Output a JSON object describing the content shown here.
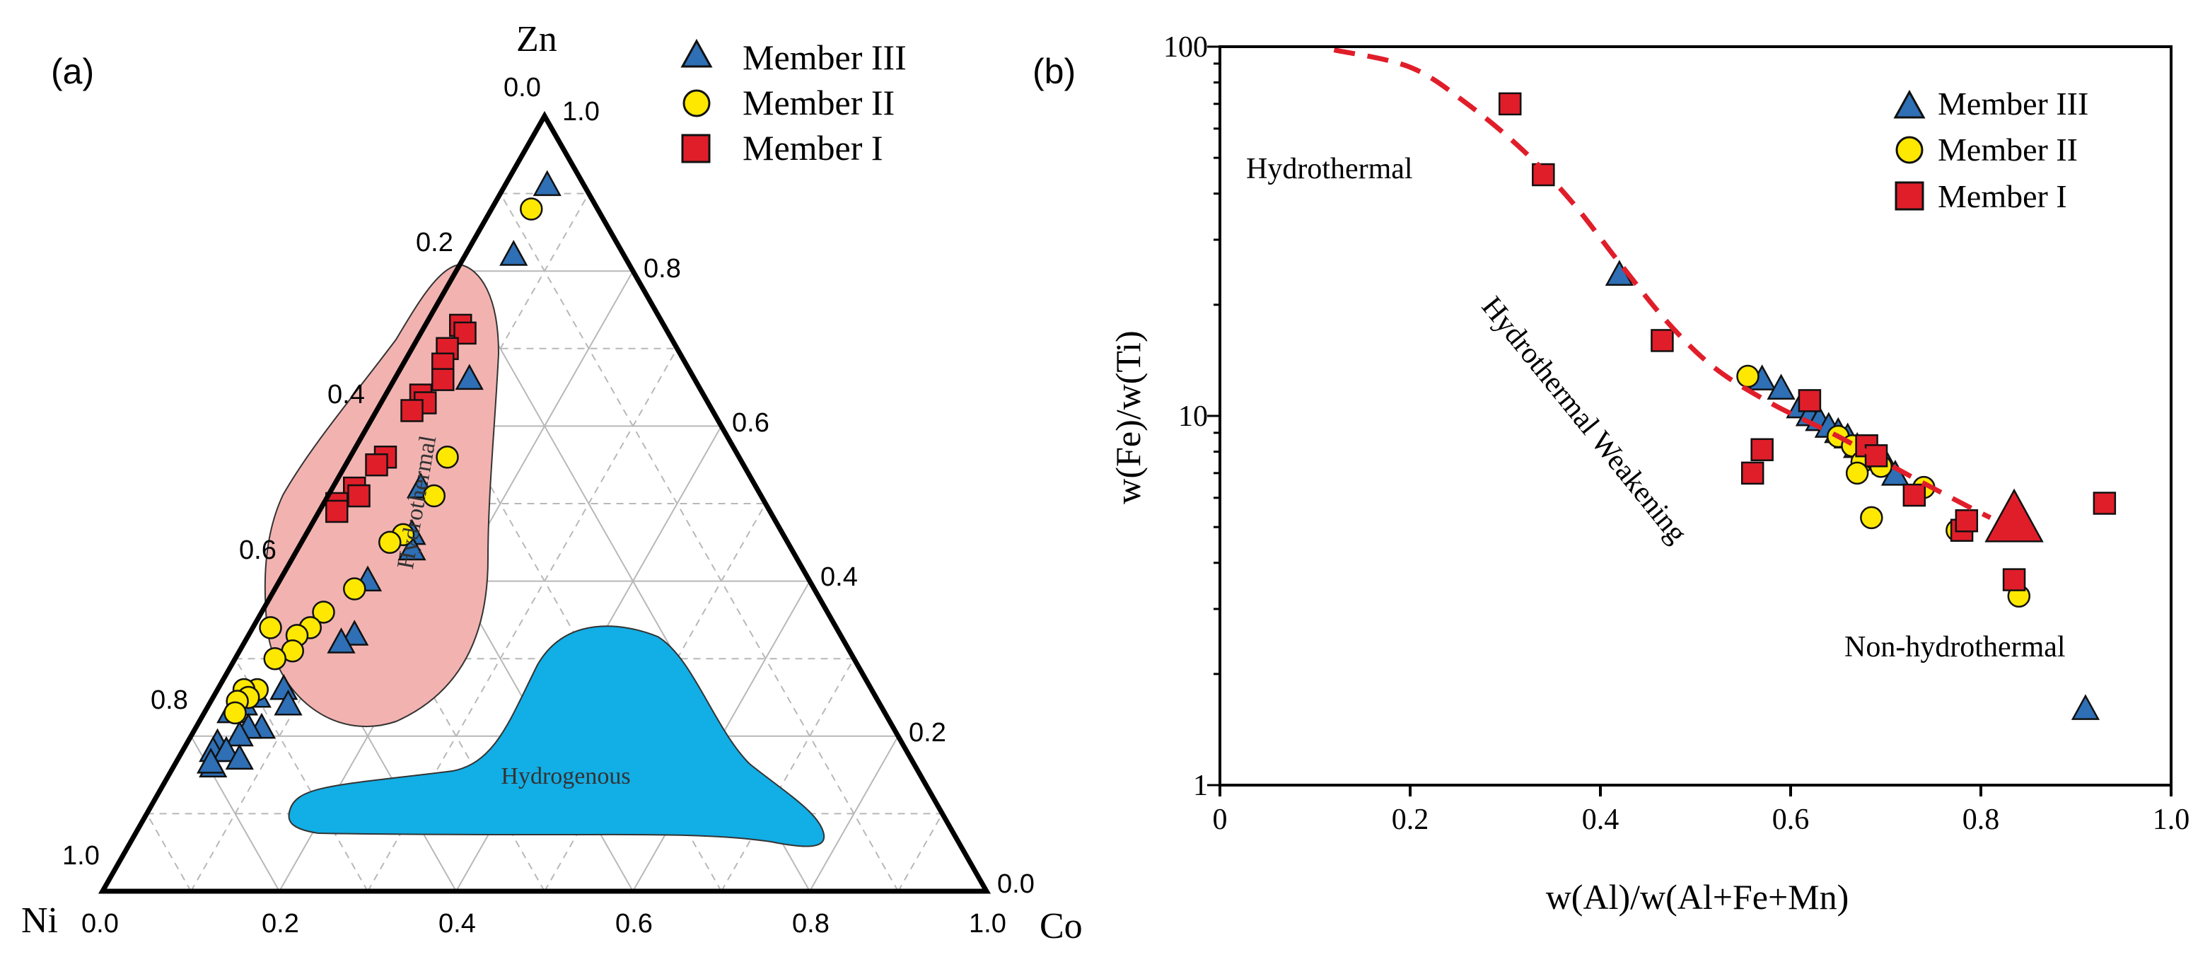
{
  "chart_data": [
    {
      "type": "ternary-scatter",
      "panel_label": "(a)",
      "vertices": {
        "top": "Zn",
        "left": "Ni",
        "right": "Co"
      },
      "top_axis_ticks": [
        "0.0",
        "1.0"
      ],
      "left_edge_ticks": [
        "0.2",
        "0.4",
        "0.6",
        "0.8",
        "1.0"
      ],
      "right_edge_ticks": [
        "0.8",
        "0.6",
        "0.4",
        "0.2",
        "0.0"
      ],
      "bottom_edge_ticks": [
        "0.0",
        "0.2",
        "0.4",
        "0.6",
        "0.8",
        "1.0"
      ],
      "fields": [
        {
          "name": "Hydrothermal",
          "color": "#f2b3b0"
        },
        {
          "name": "Hydrogenous",
          "color": "#12aee6"
        }
      ],
      "legend": [
        "Member III",
        "Member II",
        "Member I"
      ],
      "series": [
        {
          "name": "Member III",
          "marker": "triangle",
          "color": "#2e6fb5",
          "points": [
            {
              "co": 0.048,
              "zn": 0.91
            },
            {
              "co": 0.055,
              "zn": 0.82
            },
            {
              "co": 0.085,
              "zn": 0.66
            },
            {
              "co": 0.1,
              "zn": 0.52
            },
            {
              "co": 0.12,
              "zn": 0.46
            },
            {
              "co": 0.13,
              "zn": 0.44
            },
            {
              "co": 0.1,
              "zn": 0.4
            },
            {
              "co": 0.12,
              "zn": 0.33
            },
            {
              "co": 0.11,
              "zn": 0.32
            },
            {
              "co": 0.075,
              "zn": 0.26
            },
            {
              "co": 0.09,
              "zn": 0.24
            },
            {
              "co": 0.05,
              "zn": 0.25
            },
            {
              "co": 0.04,
              "zn": 0.24
            },
            {
              "co": 0.03,
              "zn": 0.23
            },
            {
              "co": 0.075,
              "zn": 0.21
            },
            {
              "co": 0.06,
              "zn": 0.21
            },
            {
              "co": 0.055,
              "zn": 0.2
            },
            {
              "co": 0.035,
              "zn": 0.19
            },
            {
              "co": 0.035,
              "zn": 0.18
            },
            {
              "co": 0.05,
              "zn": 0.18
            },
            {
              "co": 0.07,
              "zn": 0.17
            },
            {
              "co": 0.045,
              "zn": 0.16
            },
            {
              "co": 0.04,
              "zn": 0.165
            }
          ]
        },
        {
          "name": "Member II",
          "marker": "circle",
          "color": "#ffe800",
          "points": [
            {
              "co": 0.045,
              "zn": 0.88
            },
            {
              "co": 0.11,
              "zn": 0.56
            },
            {
              "co": 0.12,
              "zn": 0.51
            },
            {
              "co": 0.11,
              "zn": 0.46
            },
            {
              "co": 0.1,
              "zn": 0.45
            },
            {
              "co": 0.09,
              "zn": 0.39
            },
            {
              "co": 0.07,
              "zn": 0.36
            },
            {
              "co": 0.065,
              "zn": 0.34
            },
            {
              "co": 0.055,
              "zn": 0.33
            },
            {
              "co": 0.02,
              "zn": 0.34
            },
            {
              "co": 0.06,
              "zn": 0.31
            },
            {
              "co": 0.045,
              "zn": 0.3
            },
            {
              "co": 0.045,
              "zn": 0.26
            },
            {
              "co": 0.03,
              "zn": 0.26
            },
            {
              "co": 0.04,
              "zn": 0.25
            },
            {
              "co": 0.03,
              "zn": 0.245
            },
            {
              "co": 0.035,
              "zn": 0.23
            }
          ]
        },
        {
          "name": "Member I",
          "marker": "square",
          "color": "#e01e2a",
          "points": [
            {
              "co": 0.04,
              "zn": 0.73
            },
            {
              "co": 0.05,
              "zn": 0.72
            },
            {
              "co": 0.04,
              "zn": 0.7
            },
            {
              "co": 0.045,
              "zn": 0.68
            },
            {
              "co": 0.055,
              "zn": 0.66
            },
            {
              "co": 0.04,
              "zn": 0.64
            },
            {
              "co": 0.05,
              "zn": 0.63
            },
            {
              "co": 0.04,
              "zn": 0.62
            },
            {
              "co": 0.04,
              "zn": 0.56
            },
            {
              "co": 0.035,
              "zn": 0.55
            },
            {
              "co": 0.025,
              "zn": 0.52
            },
            {
              "co": 0.035,
              "zn": 0.51
            },
            {
              "co": 0.015,
              "zn": 0.5
            },
            {
              "co": 0.02,
              "zn": 0.49
            }
          ]
        }
      ]
    },
    {
      "type": "scatter",
      "panel_label": "(b)",
      "xlabel": "w(Al)/w(Al+Fe+Mn)",
      "ylabel": "w(Fe)/w(Ti)",
      "xlim": [
        0,
        1.0
      ],
      "ylim": [
        1,
        100
      ],
      "yscale": "log",
      "x_tick_labels": [
        "0",
        "0.2",
        "0.4",
        "0.6",
        "0.8",
        "1.0"
      ],
      "y_tick_labels": [
        "1",
        "10",
        "100"
      ],
      "annotations": [
        "Hydrothermal",
        "Hydrothermal Weakening",
        "Non-hydrothermal"
      ],
      "legend": [
        "Member III",
        "Member II",
        "Member I"
      ],
      "legend_position": "top-right",
      "trend_curve": {
        "style": "dashed",
        "color": "#e01e2a",
        "points": [
          [
            0.12,
            98
          ],
          [
            0.2,
            88
          ],
          [
            0.26,
            70
          ],
          [
            0.32,
            52
          ],
          [
            0.37,
            38
          ],
          [
            0.42,
            26
          ],
          [
            0.47,
            18
          ],
          [
            0.52,
            13.5
          ],
          [
            0.58,
            10.8
          ],
          [
            0.65,
            8.8
          ],
          [
            0.72,
            7.0
          ],
          [
            0.78,
            5.8
          ],
          [
            0.81,
            5.3
          ]
        ]
      },
      "reference_point": {
        "x": 0.835,
        "y": 5.2,
        "marker": "large-triangle",
        "color": "#e01e2a"
      },
      "series": [
        {
          "name": "Member III",
          "marker": "triangle",
          "color": "#2e6fb5",
          "points": [
            {
              "x": 0.42,
              "y": 24
            },
            {
              "x": 0.57,
              "y": 12.5
            },
            {
              "x": 0.59,
              "y": 11.8
            },
            {
              "x": 0.61,
              "y": 10.5
            },
            {
              "x": 0.62,
              "y": 10
            },
            {
              "x": 0.63,
              "y": 9.7
            },
            {
              "x": 0.64,
              "y": 9.3
            },
            {
              "x": 0.65,
              "y": 9.0
            },
            {
              "x": 0.66,
              "y": 8.7
            },
            {
              "x": 0.67,
              "y": 8.2
            },
            {
              "x": 0.7,
              "y": 7.4
            },
            {
              "x": 0.71,
              "y": 6.9
            },
            {
              "x": 0.91,
              "y": 1.6
            }
          ]
        },
        {
          "name": "Member II",
          "marker": "circle",
          "color": "#ffe800",
          "points": [
            {
              "x": 0.555,
              "y": 12.8
            },
            {
              "x": 0.65,
              "y": 8.8
            },
            {
              "x": 0.665,
              "y": 8.3
            },
            {
              "x": 0.675,
              "y": 7.5
            },
            {
              "x": 0.69,
              "y": 7.6
            },
            {
              "x": 0.695,
              "y": 7.3
            },
            {
              "x": 0.67,
              "y": 7.0
            },
            {
              "x": 0.74,
              "y": 6.4
            },
            {
              "x": 0.685,
              "y": 5.3
            },
            {
              "x": 0.775,
              "y": 4.9
            },
            {
              "x": 0.84,
              "y": 3.25
            }
          ]
        },
        {
          "name": "Member I",
          "marker": "square",
          "color": "#e01e2a",
          "points": [
            {
              "x": 0.305,
              "y": 70
            },
            {
              "x": 0.34,
              "y": 45
            },
            {
              "x": 0.465,
              "y": 16
            },
            {
              "x": 0.62,
              "y": 11
            },
            {
              "x": 0.68,
              "y": 8.3
            },
            {
              "x": 0.57,
              "y": 8.1
            },
            {
              "x": 0.56,
              "y": 7.0
            },
            {
              "x": 0.69,
              "y": 7.8
            },
            {
              "x": 0.73,
              "y": 6.1
            },
            {
              "x": 0.78,
              "y": 4.9
            },
            {
              "x": 0.785,
              "y": 5.2
            },
            {
              "x": 0.835,
              "y": 3.6
            },
            {
              "x": 0.93,
              "y": 5.8
            }
          ]
        }
      ]
    }
  ]
}
